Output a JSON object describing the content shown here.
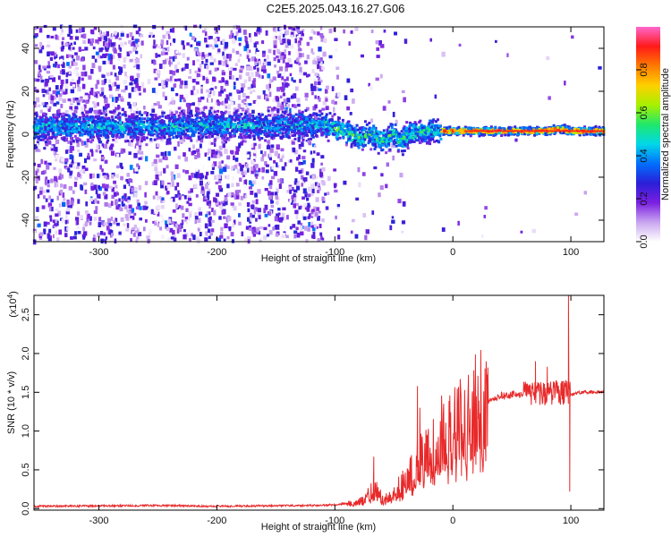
{
  "title": "C2E5.2025.043.16.27.G06",
  "chart_data": [
    {
      "type": "heatmap",
      "xlabel": "Height of straight line (km)",
      "ylabel": "Frequency (Hz)",
      "xlim": [
        -355,
        128
      ],
      "ylim": [
        -50,
        50
      ],
      "xticks": [
        -300,
        -200,
        -100,
        0,
        100
      ],
      "yticks": [
        -40,
        -20,
        0,
        20,
        40
      ],
      "colorbar": {
        "label": "Normalized spectral amplitude",
        "range": [
          0,
          1
        ],
        "ticks": [
          0.0,
          0.2,
          0.4,
          0.6,
          0.8
        ],
        "tick_labels": [
          "0.0",
          "0.2",
          "0.4",
          "0.6",
          "0.8"
        ],
        "colormap": [
          "#ffffff",
          "#c9a5f0",
          "#7a1fe0",
          "#2a1fd8",
          "#0070ff",
          "#00d8e8",
          "#20e86a",
          "#a8f000",
          "#ffd000",
          "#ff7a00",
          "#ff1a1a",
          "#ff66cc"
        ]
      },
      "ridge": {
        "x": [
          -355,
          -300,
          -250,
          -200,
          -150,
          -110,
          -90,
          -80,
          -70,
          -60,
          -50,
          -45,
          -40,
          -35,
          -30,
          -20,
          -10,
          0,
          20,
          50,
          80,
          90,
          100,
          128
        ],
        "y": [
          3.5,
          3.5,
          3.5,
          4,
          4,
          4.5,
          1,
          -2,
          0,
          -3,
          0,
          -4,
          -1,
          0,
          1,
          1.5,
          1.5,
          1.5,
          1.5,
          1.5,
          1.5,
          2.5,
          1.5,
          1.5
        ]
      }
    },
    {
      "type": "line",
      "xlabel": "Height of straight line (km)",
      "ylabel": "SNR (10 * v/v)",
      "scale_label": "(x10",
      "scale_exp": "4",
      "scale_close": ")",
      "xlim": [
        -355,
        128
      ],
      "ylim": [
        -0.02,
        2.75
      ],
      "xticks": [
        -300,
        -200,
        -100,
        0,
        100
      ],
      "yticks": [
        0.0,
        0.5,
        1.0,
        1.5,
        2.0,
        2.5
      ],
      "ytick_labels": [
        "0.0",
        "0.5",
        "1.0",
        "1.5",
        "2.0",
        "2.5"
      ],
      "series": [
        {
          "color": "#e8292a",
          "envelope": {
            "x": [
              -355,
              -250,
              -200,
              -120,
              -100,
              -80,
              -70,
              -65,
              -60,
              -50,
              -40,
              -30,
              -20,
              -10,
              0,
              10,
              20,
              40,
              60,
              80,
              90,
              95,
              100,
              110,
              128
            ],
            "y": [
              0.03,
              0.04,
              0.03,
              0.04,
              0.05,
              0.08,
              0.2,
              0.3,
              0.12,
              0.18,
              0.4,
              0.6,
              0.8,
              0.95,
              1.05,
              1.15,
              1.3,
              1.45,
              1.48,
              1.48,
              1.5,
              1.5,
              1.48,
              1.5,
              1.5
            ]
          },
          "spikes": [
            {
              "x": -67,
              "y": 0.67
            },
            {
              "x": -30,
              "y": 1.58
            },
            {
              "x": -28,
              "y": 1.3
            },
            {
              "x": 70,
              "y": 1.9
            },
            {
              "x": 80,
              "y": 1.83
            },
            {
              "x": 98,
              "y": 2.75
            },
            {
              "x": 99,
              "y": 0.22
            }
          ]
        }
      ]
    }
  ]
}
